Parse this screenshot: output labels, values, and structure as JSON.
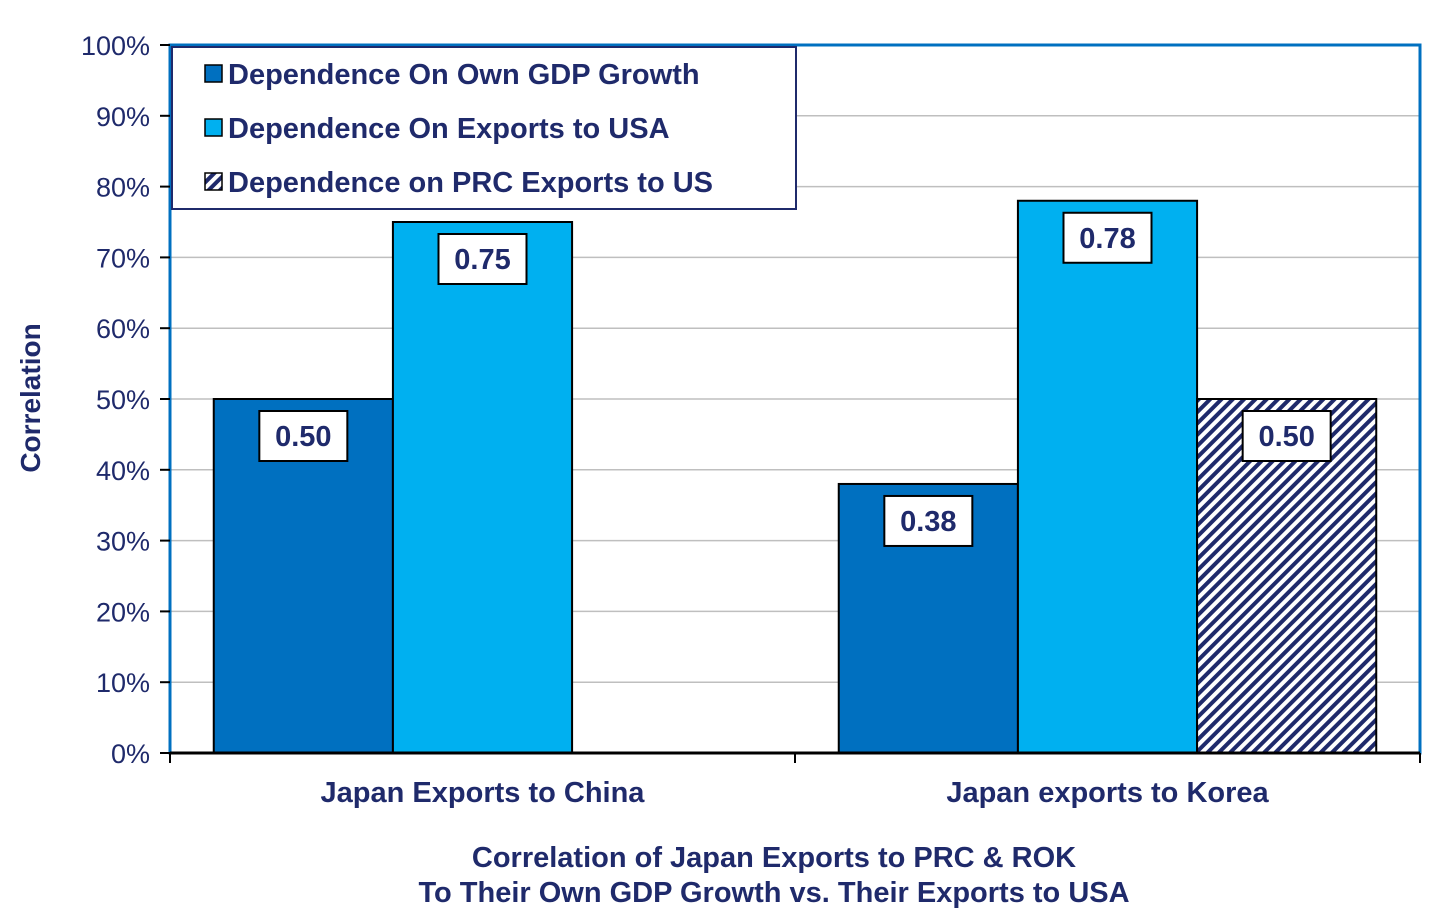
{
  "chart_data": {
    "type": "bar",
    "xlabel_lines": [
      "Correlation of Japan Exports to PRC & ROK",
      "To Their Own GDP Growth vs. Their Exports to USA"
    ],
    "ylabel": "Correlation",
    "ylim": [
      0,
      1
    ],
    "yticks": [
      0,
      0.1,
      0.2,
      0.3,
      0.4,
      0.5,
      0.6,
      0.7,
      0.8,
      0.9,
      1.0
    ],
    "ytick_labels": [
      "0%",
      "10%",
      "20%",
      "30%",
      "40%",
      "50%",
      "60%",
      "70%",
      "80%",
      "90%",
      "100%"
    ],
    "categories": [
      "Japan Exports to China",
      "Japan exports to Korea"
    ],
    "series": [
      {
        "name": "Dependence On Own GDP Growth",
        "values": [
          0.5,
          0.38
        ],
        "labels": [
          "0.50",
          "0.38"
        ],
        "color": "#0070C0",
        "pattern": "solid"
      },
      {
        "name": "Dependence On Exports to USA",
        "values": [
          0.75,
          0.78
        ],
        "labels": [
          "0.75",
          "0.78"
        ],
        "color": "#00B0F0",
        "pattern": "solid"
      },
      {
        "name": "Dependence on PRC Exports to US",
        "values": [
          null,
          0.5
        ],
        "labels": [
          null,
          "0.50"
        ],
        "color": "#1F2A6B",
        "pattern": "diagonal-stripes"
      }
    ],
    "grid": true,
    "legend_position": "top-left",
    "colors": {
      "text": "#1F2A6B",
      "gridline": "#BFBFBF",
      "plot_border": "#0070C0"
    }
  }
}
